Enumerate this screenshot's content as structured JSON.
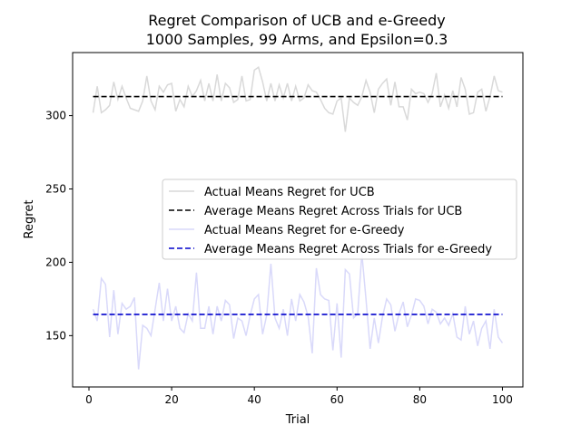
{
  "chart_data": {
    "type": "line",
    "title": "Regret Comparison of UCB and e-Greedy",
    "subtitle": "1000 Samples, 99 Arms, and Epsilon=0.3",
    "xlabel": "Trial",
    "ylabel": "Regret",
    "xlim": [
      -3.95,
      104.95
    ],
    "ylim": [
      115,
      343
    ],
    "xticks": [
      0,
      20,
      40,
      60,
      80,
      100
    ],
    "yticks": [
      150,
      200,
      250,
      300
    ],
    "grid": false,
    "legend_position": "center-right",
    "x": [
      1,
      2,
      3,
      4,
      5,
      6,
      7,
      8,
      9,
      10,
      11,
      12,
      13,
      14,
      15,
      16,
      17,
      18,
      19,
      20,
      21,
      22,
      23,
      24,
      25,
      26,
      27,
      28,
      29,
      30,
      31,
      32,
      33,
      34,
      35,
      36,
      37,
      38,
      39,
      40,
      41,
      42,
      43,
      44,
      45,
      46,
      47,
      48,
      49,
      50,
      51,
      52,
      53,
      54,
      55,
      56,
      57,
      58,
      59,
      60,
      61,
      62,
      63,
      64,
      65,
      66,
      67,
      68,
      69,
      70,
      71,
      72,
      73,
      74,
      75,
      76,
      77,
      78,
      79,
      80,
      81,
      82,
      83,
      84,
      85,
      86,
      87,
      88,
      89,
      90,
      91,
      92,
      93,
      94,
      95,
      96,
      97,
      98,
      99,
      100
    ],
    "series": [
      {
        "name": "Actual Means Regret for UCB",
        "color": "#d9d9d9",
        "style": "solid",
        "values": [
          302,
          320,
          302,
          304,
          307,
          323,
          311,
          320,
          312,
          305,
          304,
          303,
          310,
          327,
          310,
          304,
          320,
          316,
          321,
          322,
          303,
          311,
          306,
          320,
          313,
          317,
          324,
          310,
          322,
          310,
          328,
          310,
          322,
          319,
          309,
          311,
          327,
          310,
          311,
          331,
          333,
          323,
          310,
          322,
          310,
          321,
          312,
          322,
          310,
          320,
          310,
          312,
          321,
          317,
          316,
          311,
          305,
          302,
          301,
          310,
          312,
          289,
          312,
          309,
          307,
          313,
          324,
          316,
          302,
          318,
          322,
          325,
          307,
          323,
          306,
          306,
          297,
          318,
          315,
          316,
          315,
          309,
          315,
          329,
          306,
          314,
          305,
          317,
          306,
          326,
          318,
          301,
          302,
          316,
          318,
          303,
          313,
          327,
          317,
          316
        ]
      },
      {
        "name": "Average Means Regret Across Trials for UCB",
        "color": "#000000",
        "style": "dashed",
        "values": [
          313,
          313,
          313,
          313,
          313,
          313,
          313,
          313,
          313,
          313,
          313,
          313,
          313,
          313,
          313,
          313,
          313,
          313,
          313,
          313,
          313,
          313,
          313,
          313,
          313,
          313,
          313,
          313,
          313,
          313,
          313,
          313,
          313,
          313,
          313,
          313,
          313,
          313,
          313,
          313,
          313,
          313,
          313,
          313,
          313,
          313,
          313,
          313,
          313,
          313,
          313,
          313,
          313,
          313,
          313,
          313,
          313,
          313,
          313,
          313,
          313,
          313,
          313,
          313,
          313,
          313,
          313,
          313,
          313,
          313,
          313,
          313,
          313,
          313,
          313,
          313,
          313,
          313,
          313,
          313,
          313,
          313,
          313,
          313,
          313,
          313,
          313,
          313,
          313,
          313,
          313,
          313,
          313,
          313,
          313,
          313,
          313,
          313,
          313,
          313
        ]
      },
      {
        "name": "Actual Means Regret for e-Greedy",
        "color": "#d9d9fa",
        "style": "solid",
        "values": [
          168,
          160,
          189,
          185,
          149,
          181,
          151,
          172,
          168,
          170,
          176,
          127,
          157,
          155,
          150,
          168,
          186,
          160,
          182,
          160,
          170,
          155,
          152,
          165,
          160,
          193,
          155,
          155,
          170,
          151,
          170,
          160,
          174,
          171,
          148,
          162,
          160,
          150,
          164,
          175,
          178,
          151,
          164,
          199,
          162,
          155,
          168,
          150,
          175,
          160,
          178,
          173,
          163,
          138,
          196,
          178,
          175,
          174,
          140,
          172,
          135,
          195,
          192,
          162,
          165,
          206,
          175,
          141,
          162,
          145,
          163,
          175,
          171,
          153,
          165,
          173,
          156,
          164,
          175,
          174,
          170,
          158,
          168,
          166,
          158,
          162,
          157,
          165,
          149,
          147,
          170,
          151,
          160,
          143,
          155,
          160,
          141,
          168,
          149,
          145
        ]
      },
      {
        "name": "Average Means Regret Across Trials for e-Greedy",
        "color": "#0000cc",
        "style": "dashed",
        "values": [
          164.5,
          164.5,
          164.5,
          164.5,
          164.5,
          164.5,
          164.5,
          164.5,
          164.5,
          164.5,
          164.5,
          164.5,
          164.5,
          164.5,
          164.5,
          164.5,
          164.5,
          164.5,
          164.5,
          164.5,
          164.5,
          164.5,
          164.5,
          164.5,
          164.5,
          164.5,
          164.5,
          164.5,
          164.5,
          164.5,
          164.5,
          164.5,
          164.5,
          164.5,
          164.5,
          164.5,
          164.5,
          164.5,
          164.5,
          164.5,
          164.5,
          164.5,
          164.5,
          164.5,
          164.5,
          164.5,
          164.5,
          164.5,
          164.5,
          164.5,
          164.5,
          164.5,
          164.5,
          164.5,
          164.5,
          164.5,
          164.5,
          164.5,
          164.5,
          164.5,
          164.5,
          164.5,
          164.5,
          164.5,
          164.5,
          164.5,
          164.5,
          164.5,
          164.5,
          164.5,
          164.5,
          164.5,
          164.5,
          164.5,
          164.5,
          164.5,
          164.5,
          164.5,
          164.5,
          164.5,
          164.5,
          164.5,
          164.5,
          164.5,
          164.5,
          164.5,
          164.5,
          164.5,
          164.5,
          164.5,
          164.5,
          164.5,
          164.5,
          164.5,
          164.5,
          164.5,
          164.5,
          164.5,
          164.5,
          164.5
        ]
      }
    ]
  }
}
